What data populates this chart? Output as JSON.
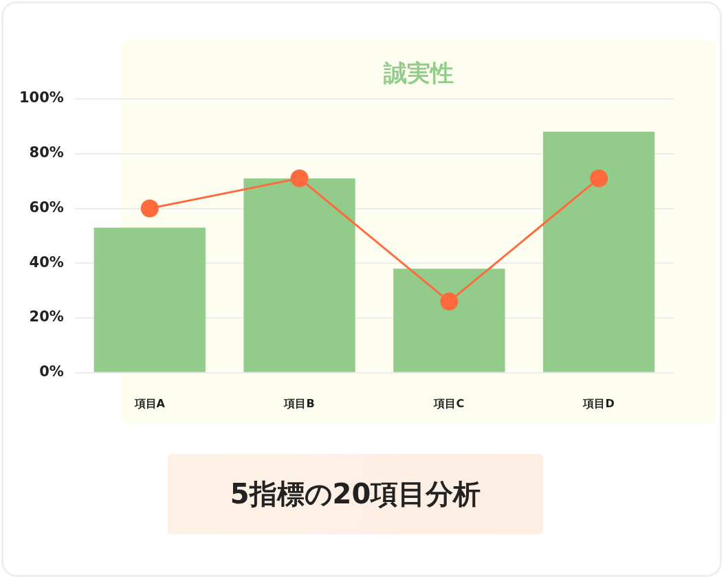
{
  "chart_data": {
    "type": "bar",
    "title": "誠実性",
    "categories": [
      "項目A",
      "項目B",
      "項目C",
      "項目D"
    ],
    "series": [
      {
        "color": "#93cb8b",
        "values": [
          53,
          71,
          38,
          88
        ]
      },
      {
        "type": "line",
        "color": "#ff6a3d",
        "values": [
          60,
          71,
          26,
          71
        ],
        "marker": "circle",
        "line_style": "solid"
      }
    ],
    "ylim": [
      0,
      100
    ],
    "yticks": [
      {
        "value": 0,
        "label": "0%"
      },
      {
        "value": 20,
        "label": "20%"
      },
      {
        "value": 40,
        "label": "40%"
      },
      {
        "value": 60,
        "label": "60%"
      },
      {
        "value": 80,
        "label": "80%"
      },
      {
        "value": 100,
        "label": "100%"
      }
    ],
    "grid": "y",
    "legend": false,
    "annotations": [
      "5指標の20項目分析"
    ]
  }
}
